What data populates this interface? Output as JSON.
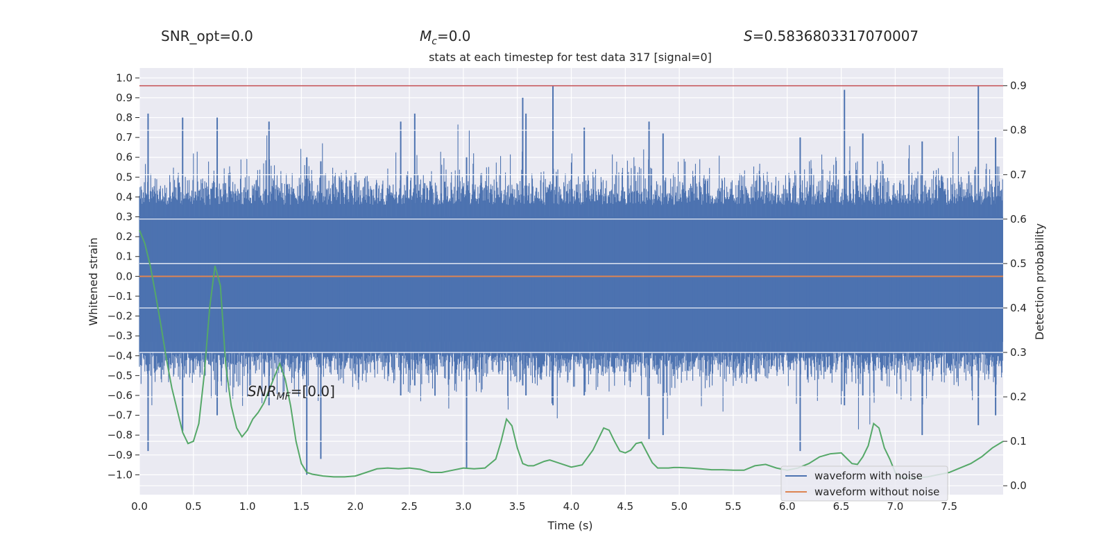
{
  "header": {
    "snr_opt": "SNR_opt=0.0",
    "mc_symbol": "M",
    "mc_sub": "c",
    "mc_value": "=0.0",
    "s_symbol": "S",
    "s_value": "=0.5836803317070007"
  },
  "annotation": {
    "snr_symbol": "SNR",
    "snr_sub": "MF",
    "snr_value": "=[0.0]"
  },
  "colors": {
    "plot_bg": "#eaeaf2",
    "grid": "#ffffff",
    "noisy": "#4c72b0",
    "clean": "#dd8452",
    "prob": "#55a868",
    "threshold": "#c44e52"
  },
  "chart_data": {
    "type": "line",
    "title": "stats at each timestep for test data 317 [signal=0]",
    "xlabel": "Time (s)",
    "ylabel": "Whitened strain",
    "y2label": "Detection probability",
    "xlim": [
      0.0,
      8.0
    ],
    "ylim": [
      -1.1,
      1.05
    ],
    "y2lim": [
      -0.02,
      0.94
    ],
    "xticks": [
      "0.0",
      "0.5",
      "1.0",
      "1.5",
      "2.0",
      "2.5",
      "3.0",
      "3.5",
      "4.0",
      "4.5",
      "5.0",
      "5.5",
      "6.0",
      "6.5",
      "7.0",
      "7.5"
    ],
    "yticks": [
      "1.0",
      "0.9",
      "0.8",
      "0.7",
      "0.6",
      "0.5",
      "0.4",
      "0.3",
      "0.2",
      "0.1",
      "0.0",
      "−0.1",
      "−0.2",
      "−0.3",
      "−0.4",
      "−0.5",
      "−0.6",
      "−0.7",
      "−0.8",
      "−0.9",
      "−1.0"
    ],
    "y2ticks": [
      "0.9",
      "0.8",
      "0.7",
      "0.6",
      "0.5",
      "0.4",
      "0.3",
      "0.2",
      "0.1",
      "0.0"
    ],
    "legend": {
      "position": "lower-right",
      "entries": [
        "waveform with noise",
        "waveform without noise"
      ]
    },
    "grid": true,
    "threshold": 0.9,
    "clean_waveform": {
      "name": "waveform without noise",
      "value": 0.0
    },
    "noisy_waveform": {
      "name": "waveform with noise",
      "band": [
        -0.33,
        0.3
      ],
      "peaks": [
        {
          "x": 0.08,
          "y": 0.82,
          "ymin": -0.88
        },
        {
          "x": 0.4,
          "y": 0.8,
          "ymin": -0.78
        },
        {
          "x": 0.72,
          "y": 0.8,
          "ymin": -0.7
        },
        {
          "x": 1.2,
          "y": 0.78,
          "ymin": -0.65
        },
        {
          "x": 1.55,
          "y": 0.6,
          "ymin": -1.0
        },
        {
          "x": 1.68,
          "y": 0.58,
          "ymin": -0.92
        },
        {
          "x": 2.42,
          "y": 0.78,
          "ymin": -0.6
        },
        {
          "x": 2.55,
          "y": 0.82,
          "ymin": -0.55
        },
        {
          "x": 3.03,
          "y": 0.6,
          "ymin": -0.97
        },
        {
          "x": 3.55,
          "y": 0.9,
          "ymin": -0.55
        },
        {
          "x": 3.58,
          "y": 0.82,
          "ymin": -0.6
        },
        {
          "x": 3.83,
          "y": 0.96,
          "ymin": -0.65
        },
        {
          "x": 4.12,
          "y": 0.75,
          "ymin": -0.6
        },
        {
          "x": 4.72,
          "y": 0.78,
          "ymin": -0.82
        },
        {
          "x": 4.85,
          "y": 0.72,
          "ymin": -0.8
        },
        {
          "x": 6.12,
          "y": 0.7,
          "ymin": -0.88
        },
        {
          "x": 6.53,
          "y": 0.94,
          "ymin": -0.65
        },
        {
          "x": 6.7,
          "y": 0.72,
          "ymin": -0.6
        },
        {
          "x": 7.25,
          "y": 0.68,
          "ymin": -0.8
        },
        {
          "x": 7.77,
          "y": 0.96,
          "ymin": -0.75
        },
        {
          "x": 7.93,
          "y": 0.7,
          "ymin": -0.7
        }
      ]
    },
    "detection_probability": {
      "x": [
        0.0,
        0.05,
        0.1,
        0.15,
        0.2,
        0.25,
        0.3,
        0.35,
        0.4,
        0.45,
        0.5,
        0.55,
        0.6,
        0.65,
        0.7,
        0.75,
        0.8,
        0.85,
        0.9,
        0.95,
        1.0,
        1.05,
        1.1,
        1.15,
        1.2,
        1.25,
        1.3,
        1.35,
        1.4,
        1.45,
        1.5,
        1.55,
        1.6,
        1.7,
        1.8,
        1.9,
        2.0,
        2.1,
        2.2,
        2.3,
        2.4,
        2.5,
        2.6,
        2.7,
        2.8,
        2.9,
        3.0,
        3.1,
        3.2,
        3.3,
        3.35,
        3.4,
        3.45,
        3.5,
        3.55,
        3.6,
        3.65,
        3.7,
        3.75,
        3.8,
        3.9,
        4.0,
        4.1,
        4.2,
        4.3,
        4.35,
        4.4,
        4.45,
        4.5,
        4.55,
        4.6,
        4.65,
        4.7,
        4.75,
        4.8,
        4.85,
        4.9,
        4.95,
        5.0,
        5.1,
        5.2,
        5.3,
        5.4,
        5.5,
        5.6,
        5.7,
        5.8,
        5.9,
        6.0,
        6.1,
        6.2,
        6.3,
        6.4,
        6.5,
        6.55,
        6.6,
        6.65,
        6.7,
        6.75,
        6.8,
        6.85,
        6.9,
        6.95,
        7.0,
        7.05,
        7.1,
        7.2,
        7.3,
        7.4,
        7.5,
        7.6,
        7.7,
        7.8,
        7.9,
        8.0
      ],
      "y": [
        0.575,
        0.545,
        0.495,
        0.43,
        0.36,
        0.285,
        0.22,
        0.17,
        0.12,
        0.095,
        0.1,
        0.14,
        0.25,
        0.4,
        0.495,
        0.45,
        0.27,
        0.18,
        0.13,
        0.11,
        0.125,
        0.15,
        0.165,
        0.185,
        0.215,
        0.245,
        0.275,
        0.24,
        0.18,
        0.1,
        0.05,
        0.03,
        0.026,
        0.022,
        0.02,
        0.02,
        0.022,
        0.03,
        0.038,
        0.04,
        0.038,
        0.04,
        0.037,
        0.03,
        0.03,
        0.035,
        0.04,
        0.038,
        0.04,
        0.06,
        0.1,
        0.15,
        0.135,
        0.085,
        0.05,
        0.045,
        0.045,
        0.05,
        0.055,
        0.058,
        0.05,
        0.042,
        0.047,
        0.08,
        0.13,
        0.125,
        0.1,
        0.078,
        0.074,
        0.08,
        0.095,
        0.098,
        0.075,
        0.052,
        0.04,
        0.04,
        0.04,
        0.041,
        0.041,
        0.04,
        0.038,
        0.036,
        0.036,
        0.035,
        0.035,
        0.045,
        0.048,
        0.04,
        0.035,
        0.04,
        0.05,
        0.065,
        0.072,
        0.074,
        0.062,
        0.05,
        0.048,
        0.065,
        0.09,
        0.14,
        0.13,
        0.085,
        0.06,
        0.03,
        0.02,
        0.018,
        0.018,
        0.02,
        0.025,
        0.03,
        0.04,
        0.05,
        0.065,
        0.085,
        0.1
      ]
    }
  }
}
